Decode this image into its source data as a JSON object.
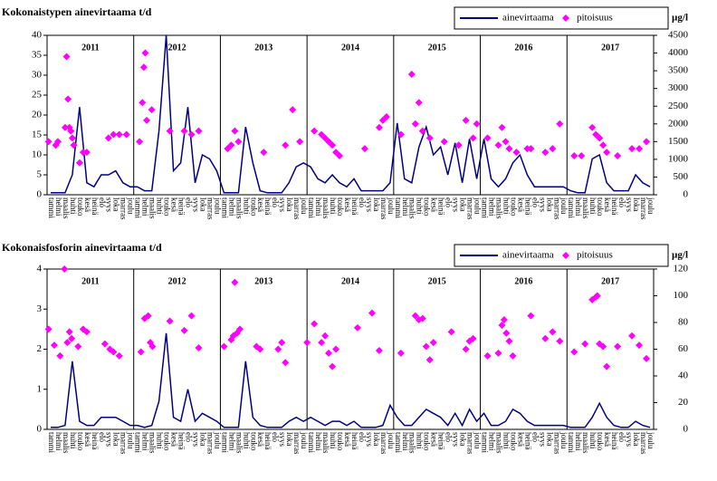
{
  "chart_data": [
    {
      "type": "line",
      "title": "Kokonaistypen ainevirtaama t/d",
      "y2label": "µg/l",
      "categories": [
        "tammi",
        "helmi",
        "maalis",
        "huhti",
        "touko",
        "kesä",
        "heinä",
        "elo",
        "syys",
        "loka",
        "marras",
        "joulu",
        "tammi",
        "helmi",
        "maalis",
        "huhti",
        "touko",
        "kesä",
        "heinä",
        "elo",
        "syys",
        "loka",
        "marras",
        "joulu",
        "tammi",
        "helmi",
        "maalis",
        "huhti",
        "touko",
        "kesä",
        "heinä",
        "elo",
        "syys",
        "loka",
        "marras",
        "joulu",
        "tammi",
        "helmi",
        "maalis",
        "huhti",
        "touko",
        "kesä",
        "heinä",
        "elo",
        "syys",
        "loka",
        "marras",
        "joulu",
        "tammi",
        "helmi",
        "maalis",
        "huhti",
        "touko",
        "kesä",
        "heinä",
        "elo",
        "syys",
        "loka",
        "marras",
        "joulu",
        "tammi",
        "helmi",
        "maalis",
        "huhti",
        "touko",
        "kesä",
        "heinä",
        "elo",
        "syys",
        "loka",
        "marras",
        "joulu",
        "tammi",
        "helmi",
        "maalis",
        "huhti",
        "touko",
        "kesä",
        "heinä",
        "elo",
        "syys",
        "loka",
        "marras",
        "joulu"
      ],
      "years": [
        "2011",
        "2012",
        "2013",
        "2014",
        "2015",
        "2016",
        "2017"
      ],
      "xlim": [
        0,
        84
      ],
      "ylim": [
        0,
        40
      ],
      "yticks": [
        0,
        5,
        10,
        15,
        20,
        25,
        30,
        35,
        40
      ],
      "y2lim": [
        0,
        4500
      ],
      "y2ticks": [
        0,
        500,
        1000,
        1500,
        2000,
        2500,
        3000,
        3500,
        4000,
        4500
      ],
      "legend": "top-right",
      "series": [
        {
          "name": "ainevirtaama",
          "color": "#000080",
          "axis": "y",
          "values": [
            0.5,
            0.5,
            0.5,
            5,
            22,
            3,
            2,
            5,
            5,
            6,
            3,
            2,
            2,
            1,
            1,
            16,
            40,
            6,
            8,
            22,
            3,
            10,
            9,
            6,
            0.5,
            0.5,
            0.5,
            17,
            8,
            1,
            0.5,
            0.5,
            0.5,
            3,
            7,
            8,
            7,
            4,
            3,
            5,
            3,
            2,
            4,
            1,
            1,
            1,
            1,
            3,
            18,
            4,
            3,
            12,
            17,
            10,
            12,
            5,
            13,
            3,
            14,
            4,
            14,
            4,
            2,
            4,
            8,
            10,
            5,
            2,
            2,
            2,
            2,
            2,
            1,
            0.5,
            0.5,
            9,
            10,
            3,
            1,
            1,
            1,
            5,
            3,
            2
          ]
        },
        {
          "name": "pitoisuus",
          "color": "#ff00ff",
          "axis": "y2",
          "x": [
            0.2,
            1.2,
            1.5,
            2.5,
            2.7,
            2.9,
            3.1,
            3.3,
            3.5,
            3.7,
            4.5,
            5,
            5.5,
            8.5,
            9.2,
            10,
            11,
            12.8,
            13.2,
            13.4,
            13.6,
            13.8,
            14.5,
            17,
            19,
            20,
            21,
            25,
            25.5,
            26,
            26.5,
            30,
            33,
            34,
            35,
            37,
            38,
            38.5,
            39,
            39.5,
            40,
            40.5,
            44,
            46,
            46.5,
            47,
            49,
            50.5,
            51,
            51.5,
            52,
            53,
            55,
            57,
            58,
            59,
            59.5,
            61,
            62.5,
            63,
            63.5,
            64,
            65,
            66.5,
            67,
            69,
            70,
            71,
            73,
            74,
            75.5,
            76,
            76.5,
            77,
            77.5,
            79,
            81,
            82,
            83
          ],
          "values": [
            1500,
            1400,
            1500,
            1900,
            3900,
            2700,
            1900,
            1800,
            1600,
            1400,
            900,
            1200,
            1200,
            1600,
            1700,
            1700,
            1700,
            1500,
            2600,
            3600,
            4000,
            2100,
            2400,
            1800,
            1800,
            1700,
            1800,
            1300,
            1400,
            1800,
            1500,
            1200,
            1400,
            2400,
            1500,
            1800,
            1700,
            1600,
            1500,
            1400,
            1200,
            1100,
            1300,
            1900,
            2100,
            2200,
            1700,
            3400,
            2000,
            2600,
            1800,
            1600,
            1500,
            1400,
            2100,
            1600,
            2000,
            1600,
            1400,
            1900,
            1500,
            1300,
            1200,
            1300,
            1300,
            1200,
            1300,
            2000,
            1100,
            1100,
            1900,
            1700,
            1600,
            1400,
            1200,
            1100,
            1300,
            1300,
            1500
          ]
        }
      ]
    },
    {
      "type": "line",
      "title": "Kokonaisfosforin ainevirtaama t/d",
      "y2label": "µg/l",
      "categories": [
        "tammi",
        "helmi",
        "maalis",
        "huhti",
        "touko",
        "kesä",
        "heinä",
        "elo",
        "syys",
        "loka",
        "marras",
        "joulu",
        "tammi",
        "helmi",
        "maalis",
        "huhti",
        "touko",
        "kesä",
        "heinä",
        "elo",
        "syys",
        "loka",
        "marras",
        "joulu",
        "tammi",
        "helmi",
        "maalis",
        "huhti",
        "touko",
        "kesä",
        "heinä",
        "elo",
        "syys",
        "loka",
        "marras",
        "joulu",
        "tammi",
        "helmi",
        "maalis",
        "huhti",
        "touko",
        "kesä",
        "heinä",
        "elo",
        "syys",
        "loka",
        "marras",
        "joulu",
        "tammi",
        "helmi",
        "maalis",
        "huhti",
        "touko",
        "kesä",
        "heinä",
        "elo",
        "syys",
        "loka",
        "marras",
        "joulu",
        "tammi",
        "helmi",
        "maalis",
        "huhti",
        "touko",
        "kesä",
        "heinä",
        "elo",
        "syys",
        "loka",
        "marras",
        "joulu",
        "tammi",
        "helmi",
        "maalis",
        "huhti",
        "touko",
        "kesä",
        "heinä",
        "elo",
        "syys",
        "loka",
        "marras",
        "joulu"
      ],
      "years": [
        "2011",
        "2012",
        "2013",
        "2014",
        "2015",
        "2016",
        "2017"
      ],
      "xlim": [
        0,
        84
      ],
      "ylim": [
        0,
        4
      ],
      "yticks": [
        0,
        1,
        2,
        3,
        4
      ],
      "y2lim": [
        0,
        120
      ],
      "y2ticks": [
        0,
        20,
        40,
        60,
        80,
        100,
        120
      ],
      "legend": "top-right",
      "series": [
        {
          "name": "ainevirtaama",
          "color": "#000080",
          "axis": "y",
          "values": [
            0.05,
            0.05,
            0.1,
            1.7,
            0.2,
            0.1,
            0.1,
            0.3,
            0.3,
            0.3,
            0.2,
            0.1,
            0.1,
            0.05,
            0.1,
            0.7,
            2.4,
            0.3,
            0.2,
            1,
            0.2,
            0.4,
            0.3,
            0.2,
            0.05,
            0.05,
            0.05,
            1.7,
            0.3,
            0.1,
            0.05,
            0.05,
            0.05,
            0.2,
            0.3,
            0.2,
            0.3,
            0.2,
            0.1,
            0.2,
            0.2,
            0.1,
            0.2,
            0.05,
            0.05,
            0.05,
            0.1,
            0.6,
            0.3,
            0.1,
            0.1,
            0.3,
            0.5,
            0.4,
            0.3,
            0.1,
            0.4,
            0.1,
            0.5,
            0.2,
            0.4,
            0.1,
            0.1,
            0.2,
            0.5,
            0.4,
            0.2,
            0.1,
            0.1,
            0.1,
            0.1,
            0.1,
            0.05,
            0.05,
            0.05,
            0.3,
            0.65,
            0.3,
            0.1,
            0.05,
            0.05,
            0.2,
            0.1,
            0.05
          ]
        },
        {
          "name": "pitoisuus",
          "color": "#ff00ff",
          "axis": "y2",
          "x": [
            0.2,
            1,
            1.8,
            2.4,
            2.8,
            3.1,
            3.4,
            4.3,
            5,
            5.5,
            8,
            8.7,
            9.2,
            10,
            13,
            13.5,
            14,
            14.3,
            14.6,
            17,
            19,
            20,
            21,
            24.5,
            25.5,
            25.8,
            26,
            26.3,
            26.7,
            29,
            29.5,
            32,
            32.5,
            33,
            36,
            37,
            38,
            38.5,
            39,
            39.5,
            40,
            43,
            45,
            46,
            49,
            51,
            51.5,
            52,
            52.5,
            53,
            53.5,
            56,
            58,
            58.5,
            59,
            61,
            62.5,
            63,
            63.3,
            63.6,
            64,
            64.5,
            67,
            69,
            70,
            71,
            73,
            74.5,
            75.5,
            76,
            76.2,
            76.5,
            77,
            77.5,
            79,
            81,
            82,
            83
          ],
          "values": [
            75,
            63,
            55,
            120,
            65,
            73,
            68,
            62,
            75,
            73,
            64,
            60,
            58,
            55,
            58,
            83,
            85,
            65,
            62,
            81,
            74,
            85,
            61,
            62,
            67,
            70,
            110,
            72,
            75,
            62,
            60,
            60,
            65,
            50,
            65,
            79,
            65,
            70,
            57,
            47,
            60,
            76,
            87,
            59,
            57,
            85,
            82,
            83,
            62,
            52,
            65,
            73,
            60,
            66,
            68,
            55,
            57,
            78,
            82,
            72,
            66,
            55,
            85,
            68,
            73,
            66,
            58,
            64,
            97,
            99,
            100,
            64,
            62,
            47,
            62,
            70,
            63,
            53
          ]
        }
      ]
    }
  ]
}
